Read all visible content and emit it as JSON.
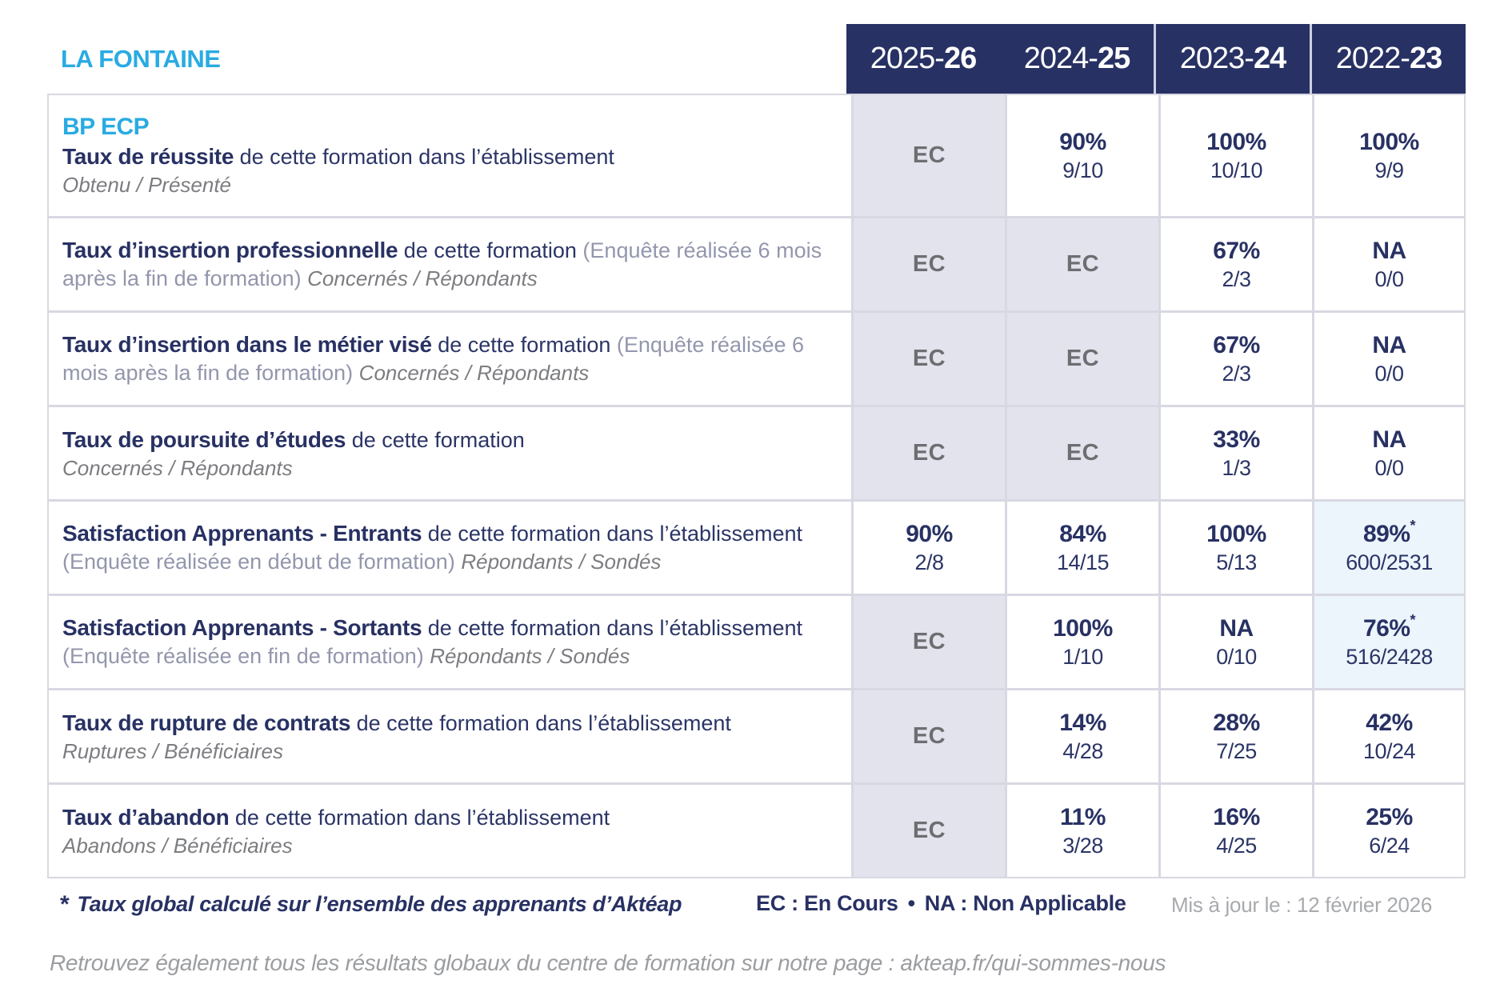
{
  "header": {
    "brand": "LA FONTAINE",
    "years": [
      {
        "prefix": "2025-",
        "bold": "26"
      },
      {
        "prefix": "2024-",
        "bold": "25"
      },
      {
        "prefix": "2023-",
        "bold": "24"
      },
      {
        "prefix": "2022-",
        "bold": "23"
      }
    ]
  },
  "table": {
    "rows": [
      {
        "course": "BP ECP",
        "title": "Taux de réussite",
        "desc": "de cette formation dans l’établissement",
        "sub": "Obtenu / Présenté",
        "cells": [
          {
            "ec": true
          },
          {
            "pct": "90%",
            "frac": "9/10"
          },
          {
            "pct": "100%",
            "frac": "10/10"
          },
          {
            "pct": "100%",
            "frac": "9/9"
          }
        ]
      },
      {
        "title": "Taux d’insertion professionnelle",
        "desc": "de cette formation",
        "paren": "(Enquête réalisée 6 mois après la fin de formation)",
        "sub": "Concernés / Répondants",
        "cells": [
          {
            "ec": true
          },
          {
            "ec": true
          },
          {
            "pct": "67%",
            "frac": "2/3"
          },
          {
            "pct": "NA",
            "frac": "0/0"
          }
        ]
      },
      {
        "title": "Taux d’insertion dans le métier visé",
        "desc": "de cette formation",
        "paren": "(Enquête réalisée 6 mois après la fin de formation)",
        "sub": "Concernés / Répondants",
        "cells": [
          {
            "ec": true
          },
          {
            "ec": true
          },
          {
            "pct": "67%",
            "frac": "2/3"
          },
          {
            "pct": "NA",
            "frac": "0/0"
          }
        ]
      },
      {
        "title": "Taux de poursuite d’études",
        "desc": "de cette formation",
        "sub": "Concernés / Répondants",
        "cells": [
          {
            "ec": true
          },
          {
            "ec": true
          },
          {
            "pct": "33%",
            "frac": "1/3"
          },
          {
            "pct": "NA",
            "frac": "0/0"
          }
        ]
      },
      {
        "title": "Satisfaction Apprenants - Entrants",
        "desc": "de cette formation dans l’établissement",
        "paren": "(Enquête réalisée en début de formation)",
        "sub": "Répondants / Sondés",
        "cells": [
          {
            "pct": "90%",
            "frac": "2/8"
          },
          {
            "pct": "84%",
            "frac": "14/15"
          },
          {
            "pct": "100%",
            "frac": "5/13"
          },
          {
            "pct": "89%",
            "frac": "600/2531",
            "star": true
          }
        ]
      },
      {
        "title": "Satisfaction Apprenants - Sortants",
        "desc": "de cette formation dans l’établissement",
        "paren": "(Enquête réalisée en fin de formation)",
        "sub": "Répondants / Sondés",
        "cells": [
          {
            "ec": true
          },
          {
            "pct": "100%",
            "frac": "1/10"
          },
          {
            "pct": "NA",
            "frac": "0/10"
          },
          {
            "pct": "76%",
            "frac": "516/2428",
            "star": true
          }
        ]
      },
      {
        "title": "Taux de rupture de contrats",
        "desc": "de cette formation dans l’établissement",
        "sub": "Ruptures / Bénéficiaires",
        "cells": [
          {
            "ec": true
          },
          {
            "pct": "14%",
            "frac": "4/28"
          },
          {
            "pct": "28%",
            "frac": "7/25"
          },
          {
            "pct": "42%",
            "frac": "10/24"
          }
        ]
      },
      {
        "title": "Taux d’abandon",
        "desc": "de cette formation dans l’établissement",
        "sub": "Abandons / Bénéficiaires",
        "cells": [
          {
            "ec": true
          },
          {
            "pct": "11%",
            "frac": "3/28"
          },
          {
            "pct": "16%",
            "frac": "4/25"
          },
          {
            "pct": "25%",
            "frac": "6/24"
          }
        ]
      }
    ]
  },
  "legend": {
    "ec_short": "EC",
    "ec_long": "EC : En Cours",
    "separator": "•",
    "na_long": "NA : Non Applicable"
  },
  "footnotes": {
    "star_symbol": "*",
    "global_note": "Taux global calculé sur l’ensemble des apprenants d’Aktéap",
    "updated": "Mis à jour le : 12 février 2026",
    "more_results_prefix": "Retrouvez également tous les résultats globaux du centre de formation sur notre page : ",
    "more_results_url": "akteap.fr/qui-sommes-nous"
  },
  "colors": {
    "navy": "#283163",
    "cyan_accent": "#29abe2",
    "ec_cell_bg": "#e3e3ed",
    "star_cell_bg": "#ecf5fb",
    "grid_line": "#d8d8e2",
    "grey_text": "#6d6e71"
  }
}
